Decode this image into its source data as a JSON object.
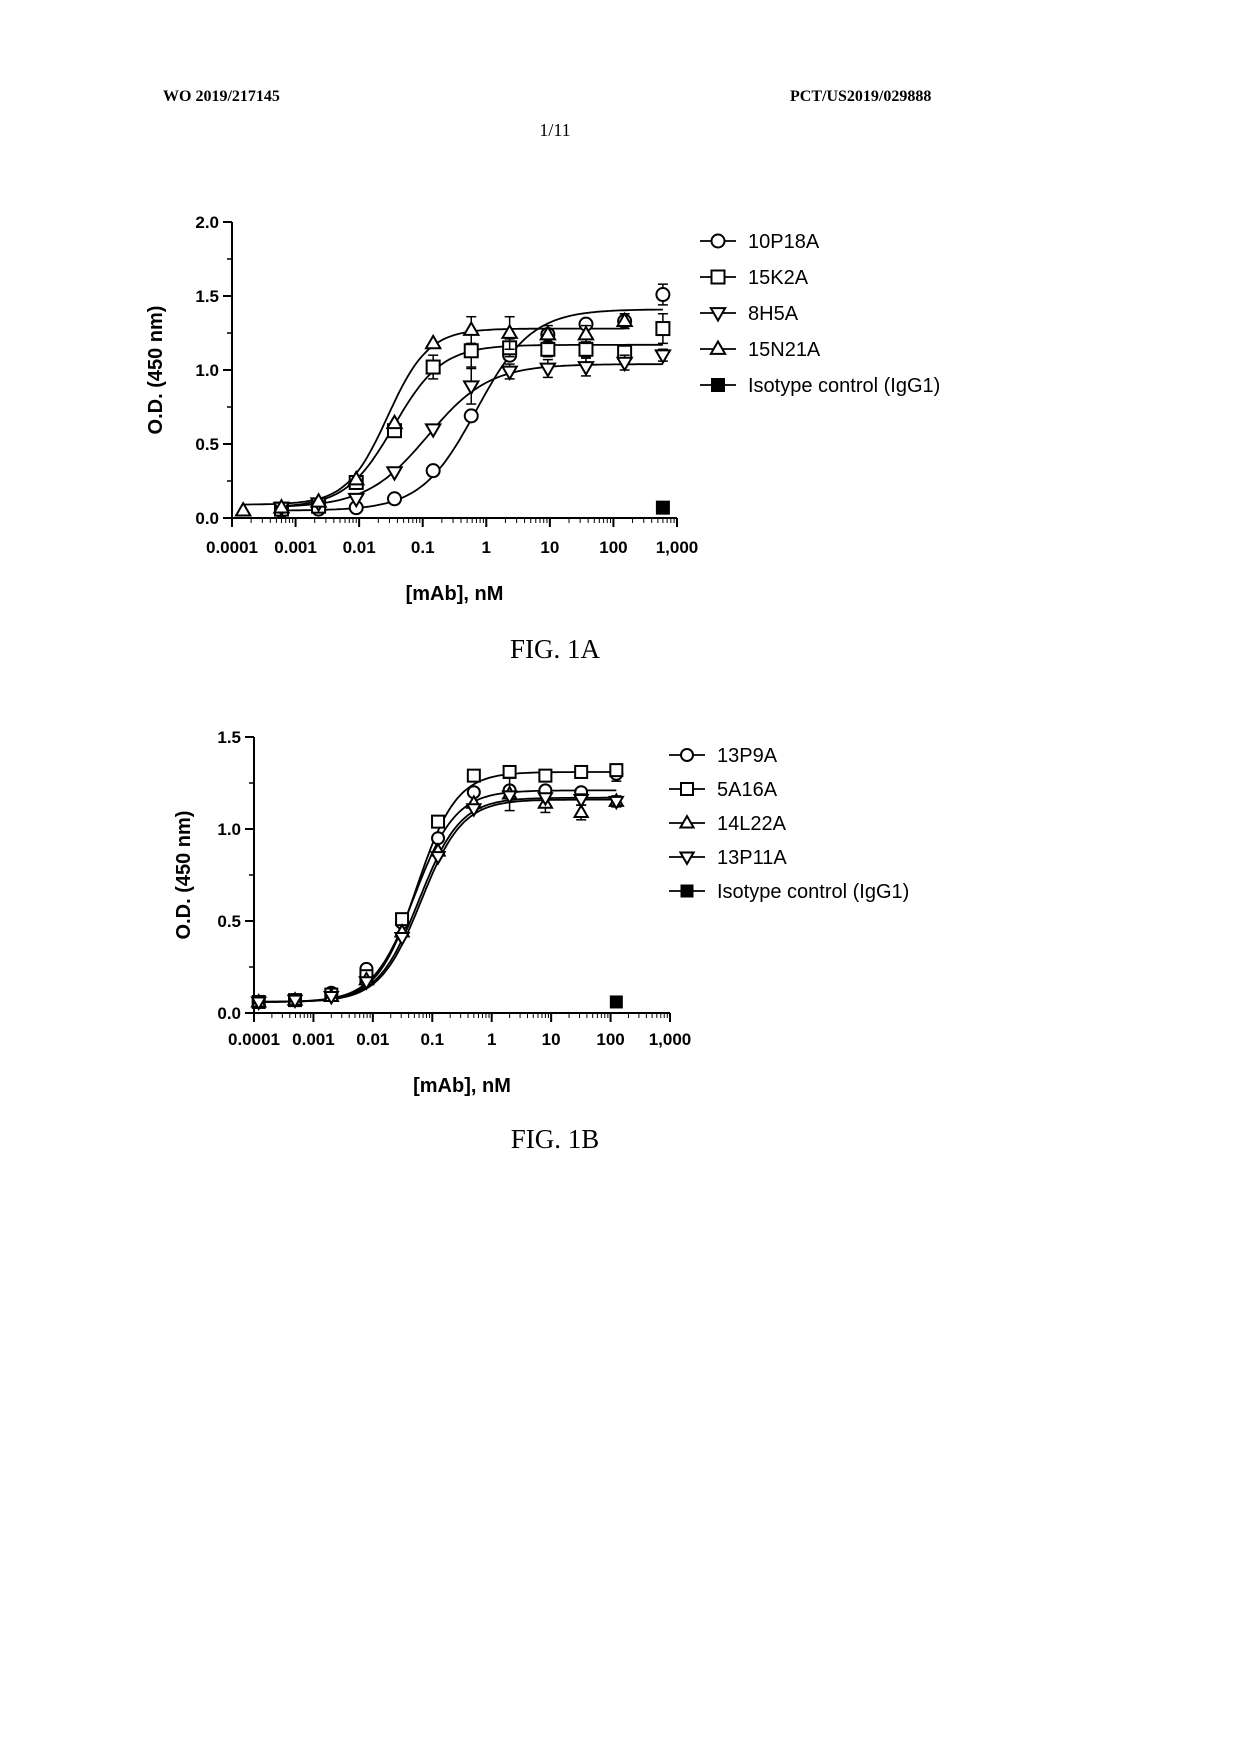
{
  "header": {
    "left": "WO 2019/217145",
    "right": "PCT/US2019/029888",
    "page": "1/11"
  },
  "colors": {
    "ink": "#000000",
    "paper": "#ffffff"
  },
  "chart_data": [
    {
      "type": "scatter",
      "caption": "FIG. 1A",
      "xlabel": "[mAb], nM",
      "ylabel": "O.D. (450 nm)",
      "xscale": "log",
      "xlim": [
        0.0001,
        1000
      ],
      "ylim": [
        0,
        2.0
      ],
      "xticks": [
        "0.0001",
        "0.001",
        "0.01",
        "0.1",
        "1",
        "10",
        "100",
        "1,000"
      ],
      "yticks": [
        "0.0",
        "0.5",
        "1.0",
        "1.5",
        "2.0"
      ],
      "legend_position": "right",
      "grid": false,
      "series": [
        {
          "name": "10P18A",
          "marker": "circle",
          "x": [
            0.0006,
            0.0023,
            0.009,
            0.036,
            0.146,
            0.58,
            2.33,
            9.3,
            37,
            150,
            600
          ],
          "y": [
            0.05,
            0.06,
            0.07,
            0.13,
            0.32,
            0.69,
            1.1,
            1.24,
            1.31,
            1.33,
            1.51
          ],
          "err": [
            0,
            0,
            0,
            0,
            0,
            0,
            0.03,
            0.03,
            0.03,
            0.03,
            0.07
          ],
          "fit": {
            "bottom": 0.05,
            "top": 1.41,
            "ec50": 0.7,
            "hill": 1.0
          }
        },
        {
          "name": "15K2A",
          "marker": "square",
          "x": [
            0.0006,
            0.0023,
            0.009,
            0.036,
            0.146,
            0.58,
            2.33,
            9.3,
            37,
            150,
            600
          ],
          "y": [
            0.06,
            0.08,
            0.24,
            0.59,
            1.02,
            1.13,
            1.15,
            1.14,
            1.14,
            1.12,
            1.28
          ],
          "err": [
            0,
            0,
            0,
            0,
            0.08,
            0.11,
            0.06,
            0.05,
            0.05,
            0.05,
            0.1
          ],
          "fit": {
            "bottom": 0.07,
            "top": 1.17,
            "ec50": 0.035,
            "hill": 1.15
          }
        },
        {
          "name": "8H5A",
          "marker": "triangle-down",
          "x": [
            0.0006,
            0.0023,
            0.009,
            0.036,
            0.146,
            0.58,
            2.33,
            9.3,
            37,
            150,
            600
          ],
          "y": [
            0.07,
            0.1,
            0.13,
            0.31,
            0.6,
            0.89,
            0.99,
            1.01,
            1.02,
            1.05,
            1.1
          ],
          "err": [
            0,
            0,
            0,
            0,
            0,
            0.12,
            0.05,
            0.06,
            0.06,
            0.05,
            0.04
          ],
          "fit": {
            "bottom": 0.07,
            "top": 1.04,
            "ec50": 0.12,
            "hill": 0.9
          }
        },
        {
          "name": "15N21A",
          "marker": "triangle-up",
          "x": [
            0.00015,
            0.0006,
            0.0023,
            0.009,
            0.036,
            0.146,
            0.58,
            2.33,
            9.3,
            37,
            150
          ],
          "y": [
            0.05,
            0.07,
            0.11,
            0.26,
            0.64,
            1.18,
            1.27,
            1.25,
            1.24,
            1.24,
            1.33
          ],
          "err": [
            0,
            0,
            0,
            0,
            0,
            0,
            0.09,
            0.11,
            0.06,
            0.06,
            0.05
          ],
          "fit": {
            "bottom": 0.09,
            "top": 1.28,
            "ec50": 0.028,
            "hill": 1.35
          }
        },
        {
          "name": "Isotype control (IgG1)",
          "marker": "square-filled",
          "x": [
            600
          ],
          "y": [
            0.07
          ],
          "err": [
            0
          ]
        }
      ]
    },
    {
      "type": "scatter",
      "caption": "FIG. 1B",
      "xlabel": "[mAb], nM",
      "ylabel": "O.D. (450 nm)",
      "xscale": "log",
      "xlim": [
        0.0001,
        1000
      ],
      "ylim": [
        0,
        1.5
      ],
      "xticks": [
        "0.0001",
        "0.001",
        "0.01",
        "0.1",
        "1",
        "10",
        "100",
        "1,000"
      ],
      "yticks": [
        "0.0",
        "0.5",
        "1.0",
        "1.5"
      ],
      "legend_position": "right",
      "grid": false,
      "series": [
        {
          "name": "13P9A",
          "marker": "circle",
          "x": [
            0.00012,
            0.00049,
            0.002,
            0.0078,
            0.031,
            0.125,
            0.5,
            2,
            8,
            32,
            125
          ],
          "y": [
            0.06,
            0.07,
            0.11,
            0.24,
            0.49,
            0.95,
            1.2,
            1.21,
            1.21,
            1.2,
            1.3
          ],
          "err": [
            0,
            0,
            0,
            0,
            0,
            0,
            0,
            0,
            0,
            0.02,
            0.04
          ],
          "fit": {
            "bottom": 0.06,
            "top": 1.21,
            "ec50": 0.05,
            "hill": 1.25
          }
        },
        {
          "name": "5A16A",
          "marker": "square",
          "x": [
            0.00012,
            0.00049,
            0.002,
            0.0078,
            0.031,
            0.125,
            0.5,
            2,
            8,
            32,
            125
          ],
          "y": [
            0.06,
            0.07,
            0.1,
            0.2,
            0.51,
            1.04,
            1.29,
            1.31,
            1.29,
            1.31,
            1.32
          ],
          "err": [
            0,
            0,
            0,
            0,
            0,
            0,
            0,
            0,
            0,
            0.02,
            0.03
          ],
          "fit": {
            "bottom": 0.06,
            "top": 1.31,
            "ec50": 0.055,
            "hill": 1.3
          }
        },
        {
          "name": "14L22A",
          "marker": "triangle-up",
          "x": [
            0.00012,
            0.00049,
            0.002,
            0.0078,
            0.031,
            0.125,
            0.5,
            2,
            8,
            32,
            125
          ],
          "y": [
            0.06,
            0.07,
            0.09,
            0.18,
            0.44,
            0.88,
            1.14,
            1.19,
            1.14,
            1.09,
            1.15
          ],
          "err": [
            0,
            0,
            0,
            0,
            0,
            0,
            0,
            0.09,
            0.05,
            0.04,
            0.03
          ],
          "fit": {
            "bottom": 0.06,
            "top": 1.17,
            "ec50": 0.06,
            "hill": 1.25
          }
        },
        {
          "name": "13P11A",
          "marker": "triangle-down",
          "x": [
            0.00012,
            0.00049,
            0.002,
            0.0078,
            0.031,
            0.125,
            0.5,
            2,
            8,
            32,
            125
          ],
          "y": [
            0.06,
            0.07,
            0.09,
            0.17,
            0.41,
            0.85,
            1.11,
            1.18,
            1.17,
            1.16,
            1.15
          ],
          "err": [
            0,
            0,
            0,
            0,
            0,
            0,
            0,
            0,
            0,
            0.03,
            0.02
          ],
          "fit": {
            "bottom": 0.06,
            "top": 1.16,
            "ec50": 0.065,
            "hill": 1.25
          }
        },
        {
          "name": "Isotype control (IgG1)",
          "marker": "square-filled",
          "x": [
            125
          ],
          "y": [
            0.06
          ],
          "err": [
            0
          ]
        }
      ]
    }
  ]
}
